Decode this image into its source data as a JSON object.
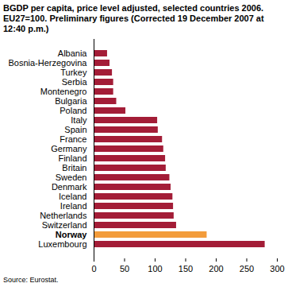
{
  "chart_data": {
    "type": "bar",
    "orientation": "horizontal",
    "title": "BGDP per capita, price level adjusted, selected countries 2006. EU27=100. Preliminary figures (Corrected 19 December 2007 at 12:40 p.m.)",
    "source": "Source: Eurostat.",
    "categories": [
      "Albania",
      "Bosnia-Herzegovina",
      "Turkey",
      "Serbia",
      "Montenegro",
      "Bulgaria",
      "Poland",
      "Italy",
      "Spain",
      "France",
      "Germany",
      "Finland",
      "Britain",
      "Sweden",
      "Denmark",
      "Iceland",
      "Ireland",
      "Netherlands",
      "Switzerland",
      "Norway",
      "Luxembourg"
    ],
    "values": [
      22,
      26,
      30,
      32,
      32,
      37,
      52,
      104,
      105,
      112,
      114,
      117,
      118,
      124,
      126,
      129,
      130,
      131,
      135,
      185,
      280
    ],
    "colors": [
      "#a31d37",
      "#a31d37",
      "#a31d37",
      "#a31d37",
      "#a31d37",
      "#a31d37",
      "#a31d37",
      "#a31d37",
      "#a31d37",
      "#a31d37",
      "#a31d37",
      "#a31d37",
      "#a31d37",
      "#a31d37",
      "#a31d37",
      "#a31d37",
      "#a31d37",
      "#a31d37",
      "#a31d37",
      "#f39c3b",
      "#a31d37"
    ],
    "xlim": [
      0,
      300
    ],
    "xticks": [
      0,
      50,
      100,
      150,
      200,
      250,
      300
    ],
    "grid": false
  }
}
